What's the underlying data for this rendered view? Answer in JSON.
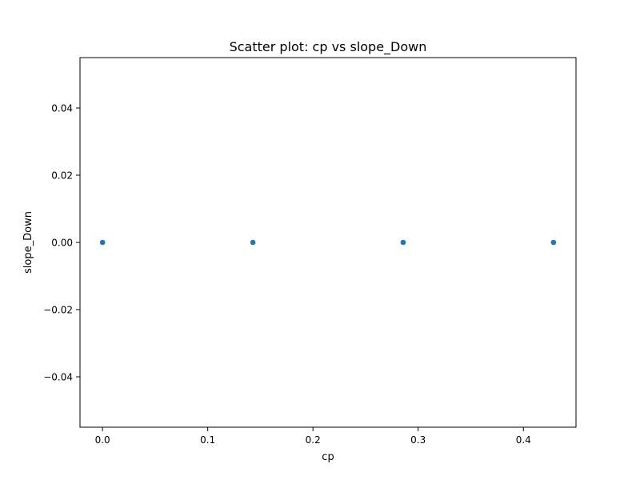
{
  "chart_data": {
    "type": "scatter",
    "title": "Scatter plot: cp vs slope_Down",
    "xlabel": "cp",
    "ylabel": "slope_Down",
    "xlim": [
      -0.0214,
      0.45
    ],
    "ylim": [
      -0.055,
      0.055
    ],
    "xticks": [
      {
        "value": 0.0,
        "label": "0.0"
      },
      {
        "value": 0.1,
        "label": "0.1"
      },
      {
        "value": 0.2,
        "label": "0.2"
      },
      {
        "value": 0.3,
        "label": "0.3"
      },
      {
        "value": 0.4,
        "label": "0.4"
      }
    ],
    "yticks": [
      {
        "value": -0.04,
        "label": "−0.04"
      },
      {
        "value": -0.02,
        "label": "−0.02"
      },
      {
        "value": 0.0,
        "label": "0.00"
      },
      {
        "value": 0.02,
        "label": "0.02"
      },
      {
        "value": 0.04,
        "label": "0.04"
      }
    ],
    "grid": false,
    "points": [
      {
        "x": 0.0,
        "y": 0.0
      },
      {
        "x": 0.1429,
        "y": 0.0
      },
      {
        "x": 0.2857,
        "y": 0.0
      },
      {
        "x": 0.4286,
        "y": 0.0
      }
    ],
    "marker_color": "#1f77b4"
  }
}
